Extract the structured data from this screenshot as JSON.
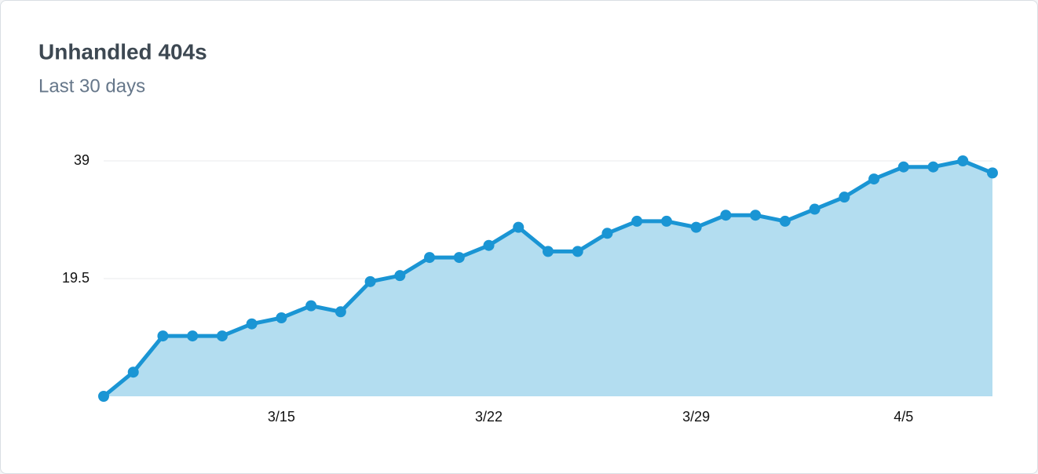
{
  "chart_data": {
    "type": "area",
    "title": "Unhandled 404s",
    "subtitle": "Last 30 days",
    "categories": [
      null,
      null,
      null,
      null,
      null,
      null,
      "3/15",
      null,
      null,
      null,
      null,
      null,
      null,
      "3/22",
      null,
      null,
      null,
      null,
      null,
      null,
      "3/29",
      null,
      null,
      null,
      null,
      null,
      null,
      "4/5",
      null,
      null,
      null
    ],
    "values": [
      0,
      4,
      10,
      10,
      10,
      12,
      13,
      15,
      14,
      19,
      20,
      23,
      23,
      25,
      28,
      24,
      24,
      27,
      29,
      29,
      28,
      30,
      30,
      29,
      31,
      33,
      36,
      38,
      38,
      39,
      37
    ],
    "color": "#1a95d4",
    "fill": "#b3ddf0",
    "ylim": [
      0,
      39
    ],
    "yticks": [
      19.5,
      39
    ],
    "grid": true
  }
}
